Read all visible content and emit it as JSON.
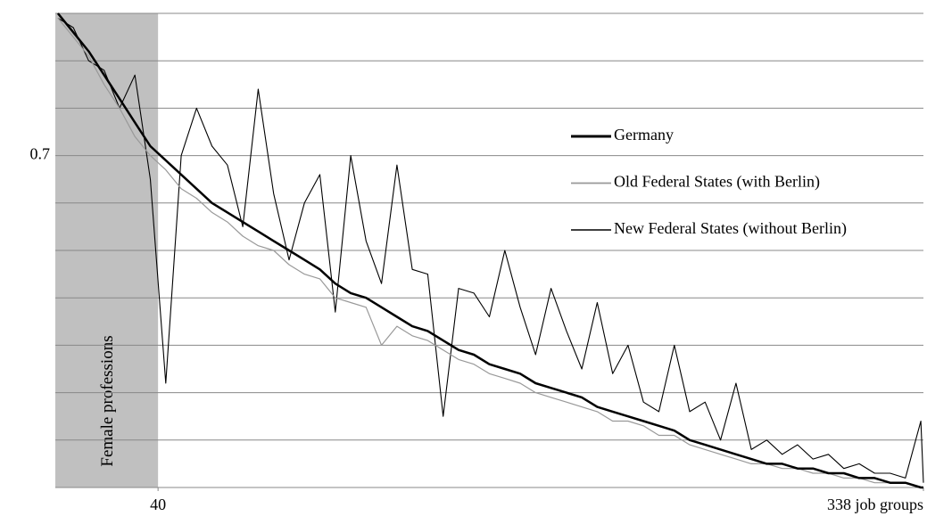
{
  "chart_data": {
    "type": "line",
    "x": [
      1,
      7,
      13,
      19,
      25,
      31,
      37,
      43,
      49,
      55,
      61,
      67,
      73,
      79,
      85,
      91,
      97,
      103,
      109,
      115,
      121,
      127,
      133,
      139,
      145,
      151,
      157,
      163,
      169,
      175,
      181,
      187,
      193,
      199,
      205,
      211,
      217,
      223,
      229,
      235,
      241,
      247,
      253,
      259,
      265,
      271,
      277,
      283,
      289,
      295,
      301,
      307,
      313,
      319,
      325,
      331,
      337,
      338
    ],
    "series": [
      {
        "name": "Germany",
        "color": "#000000",
        "width": 2.5,
        "values": [
          1.0,
          0.96,
          0.92,
          0.87,
          0.82,
          0.77,
          0.72,
          0.69,
          0.66,
          0.63,
          0.6,
          0.58,
          0.56,
          0.54,
          0.52,
          0.5,
          0.48,
          0.46,
          0.43,
          0.41,
          0.4,
          0.38,
          0.36,
          0.34,
          0.33,
          0.31,
          0.29,
          0.28,
          0.26,
          0.25,
          0.24,
          0.22,
          0.21,
          0.2,
          0.19,
          0.17,
          0.16,
          0.15,
          0.14,
          0.13,
          0.12,
          0.1,
          0.09,
          0.08,
          0.07,
          0.06,
          0.05,
          0.05,
          0.04,
          0.04,
          0.03,
          0.03,
          0.02,
          0.02,
          0.01,
          0.01,
          0.0,
          0.0
        ]
      },
      {
        "name": "Old Federal States (with Berlin)",
        "color": "#999999",
        "width": 1.2,
        "values": [
          0.99,
          0.95,
          0.91,
          0.85,
          0.8,
          0.74,
          0.7,
          0.67,
          0.63,
          0.61,
          0.58,
          0.56,
          0.53,
          0.51,
          0.5,
          0.47,
          0.45,
          0.44,
          0.4,
          0.39,
          0.38,
          0.3,
          0.34,
          0.32,
          0.31,
          0.29,
          0.27,
          0.26,
          0.24,
          0.23,
          0.22,
          0.2,
          0.19,
          0.18,
          0.17,
          0.16,
          0.14,
          0.14,
          0.13,
          0.11,
          0.11,
          0.09,
          0.08,
          0.07,
          0.06,
          0.05,
          0.05,
          0.04,
          0.04,
          0.03,
          0.03,
          0.02,
          0.02,
          0.01,
          0.01,
          0.01,
          0.0,
          0.0
        ]
      },
      {
        "name": "New Federal States (without Berlin)",
        "color": "#000000",
        "width": 1.1,
        "values": [
          0.99,
          0.97,
          0.9,
          0.88,
          0.8,
          0.87,
          0.65,
          0.22,
          0.7,
          0.8,
          0.72,
          0.68,
          0.55,
          0.84,
          0.62,
          0.48,
          0.6,
          0.66,
          0.37,
          0.7,
          0.52,
          0.43,
          0.68,
          0.46,
          0.45,
          0.15,
          0.42,
          0.41,
          0.36,
          0.5,
          0.38,
          0.28,
          0.42,
          0.33,
          0.25,
          0.39,
          0.24,
          0.3,
          0.18,
          0.16,
          0.3,
          0.16,
          0.18,
          0.1,
          0.22,
          0.08,
          0.1,
          0.07,
          0.09,
          0.06,
          0.07,
          0.04,
          0.05,
          0.03,
          0.03,
          0.02,
          0.14,
          0.01
        ]
      }
    ],
    "xlim": [
      0,
      338
    ],
    "xticks": [
      40,
      {
        "value": 338,
        "label": "338 job groups"
      }
    ],
    "ylim": [
      0,
      1
    ],
    "yticks": [
      0.7
    ],
    "ygrid": [
      0,
      0.1,
      0.2,
      0.3,
      0.4,
      0.5,
      0.6,
      0.7,
      0.8,
      0.9,
      1.0
    ],
    "shaded_region": {
      "xlim": [
        0,
        40
      ],
      "label": "Female professions",
      "color": "#c0c0c0"
    }
  }
}
